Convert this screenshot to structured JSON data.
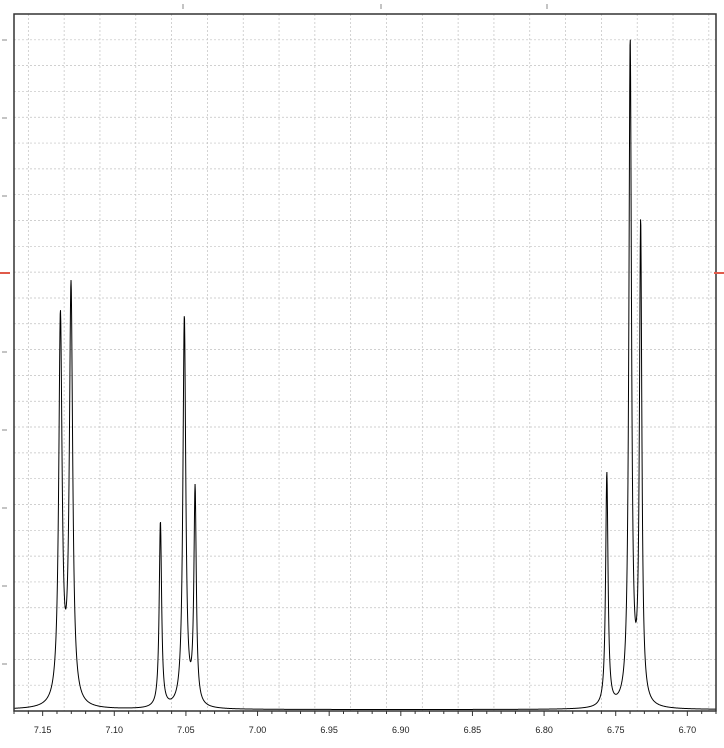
{
  "chart_data": {
    "type": "line",
    "title": "",
    "xlabel": "",
    "ylabel": "",
    "x_axis": {
      "reversed": true,
      "range": [
        7.17,
        6.68
      ],
      "tick_labels": [
        "7.15",
        "7.10",
        "7.05",
        "7.00",
        "6.95",
        "6.90",
        "6.85",
        "6.80",
        "6.75",
        "6.70"
      ],
      "tick_values": [
        7.15,
        7.1,
        7.05,
        7.0,
        6.95,
        6.9,
        6.85,
        6.8,
        6.75,
        6.7
      ]
    },
    "y_axis": {
      "range": [
        0,
        1.0
      ],
      "tick_labels_shown": false
    },
    "grid": true,
    "legend": "none",
    "baseline": 0.002,
    "series": [
      {
        "line_color": "#000000",
        "peaks": [
          {
            "ppm": 7.1376,
            "height": 0.553,
            "width": 0.0014
          },
          {
            "ppm": 7.1302,
            "height": 0.597,
            "width": 0.0014
          },
          {
            "ppm": 7.0678,
            "height": 0.267,
            "width": 0.001
          },
          {
            "ppm": 7.0511,
            "height": 0.56,
            "width": 0.0012
          },
          {
            "ppm": 7.0436,
            "height": 0.309,
            "width": 0.001
          },
          {
            "ppm": 6.7562,
            "height": 0.336,
            "width": 0.001
          },
          {
            "ppm": 6.7399,
            "height": 0.952,
            "width": 0.0011
          },
          {
            "ppm": 6.7326,
            "height": 0.685,
            "width": 0.001
          }
        ]
      }
    ],
    "marker_color": "#e05a4a",
    "colors": {
      "axis": "#333333",
      "grid": "#c0c0c0",
      "background": "#ffffff"
    }
  }
}
